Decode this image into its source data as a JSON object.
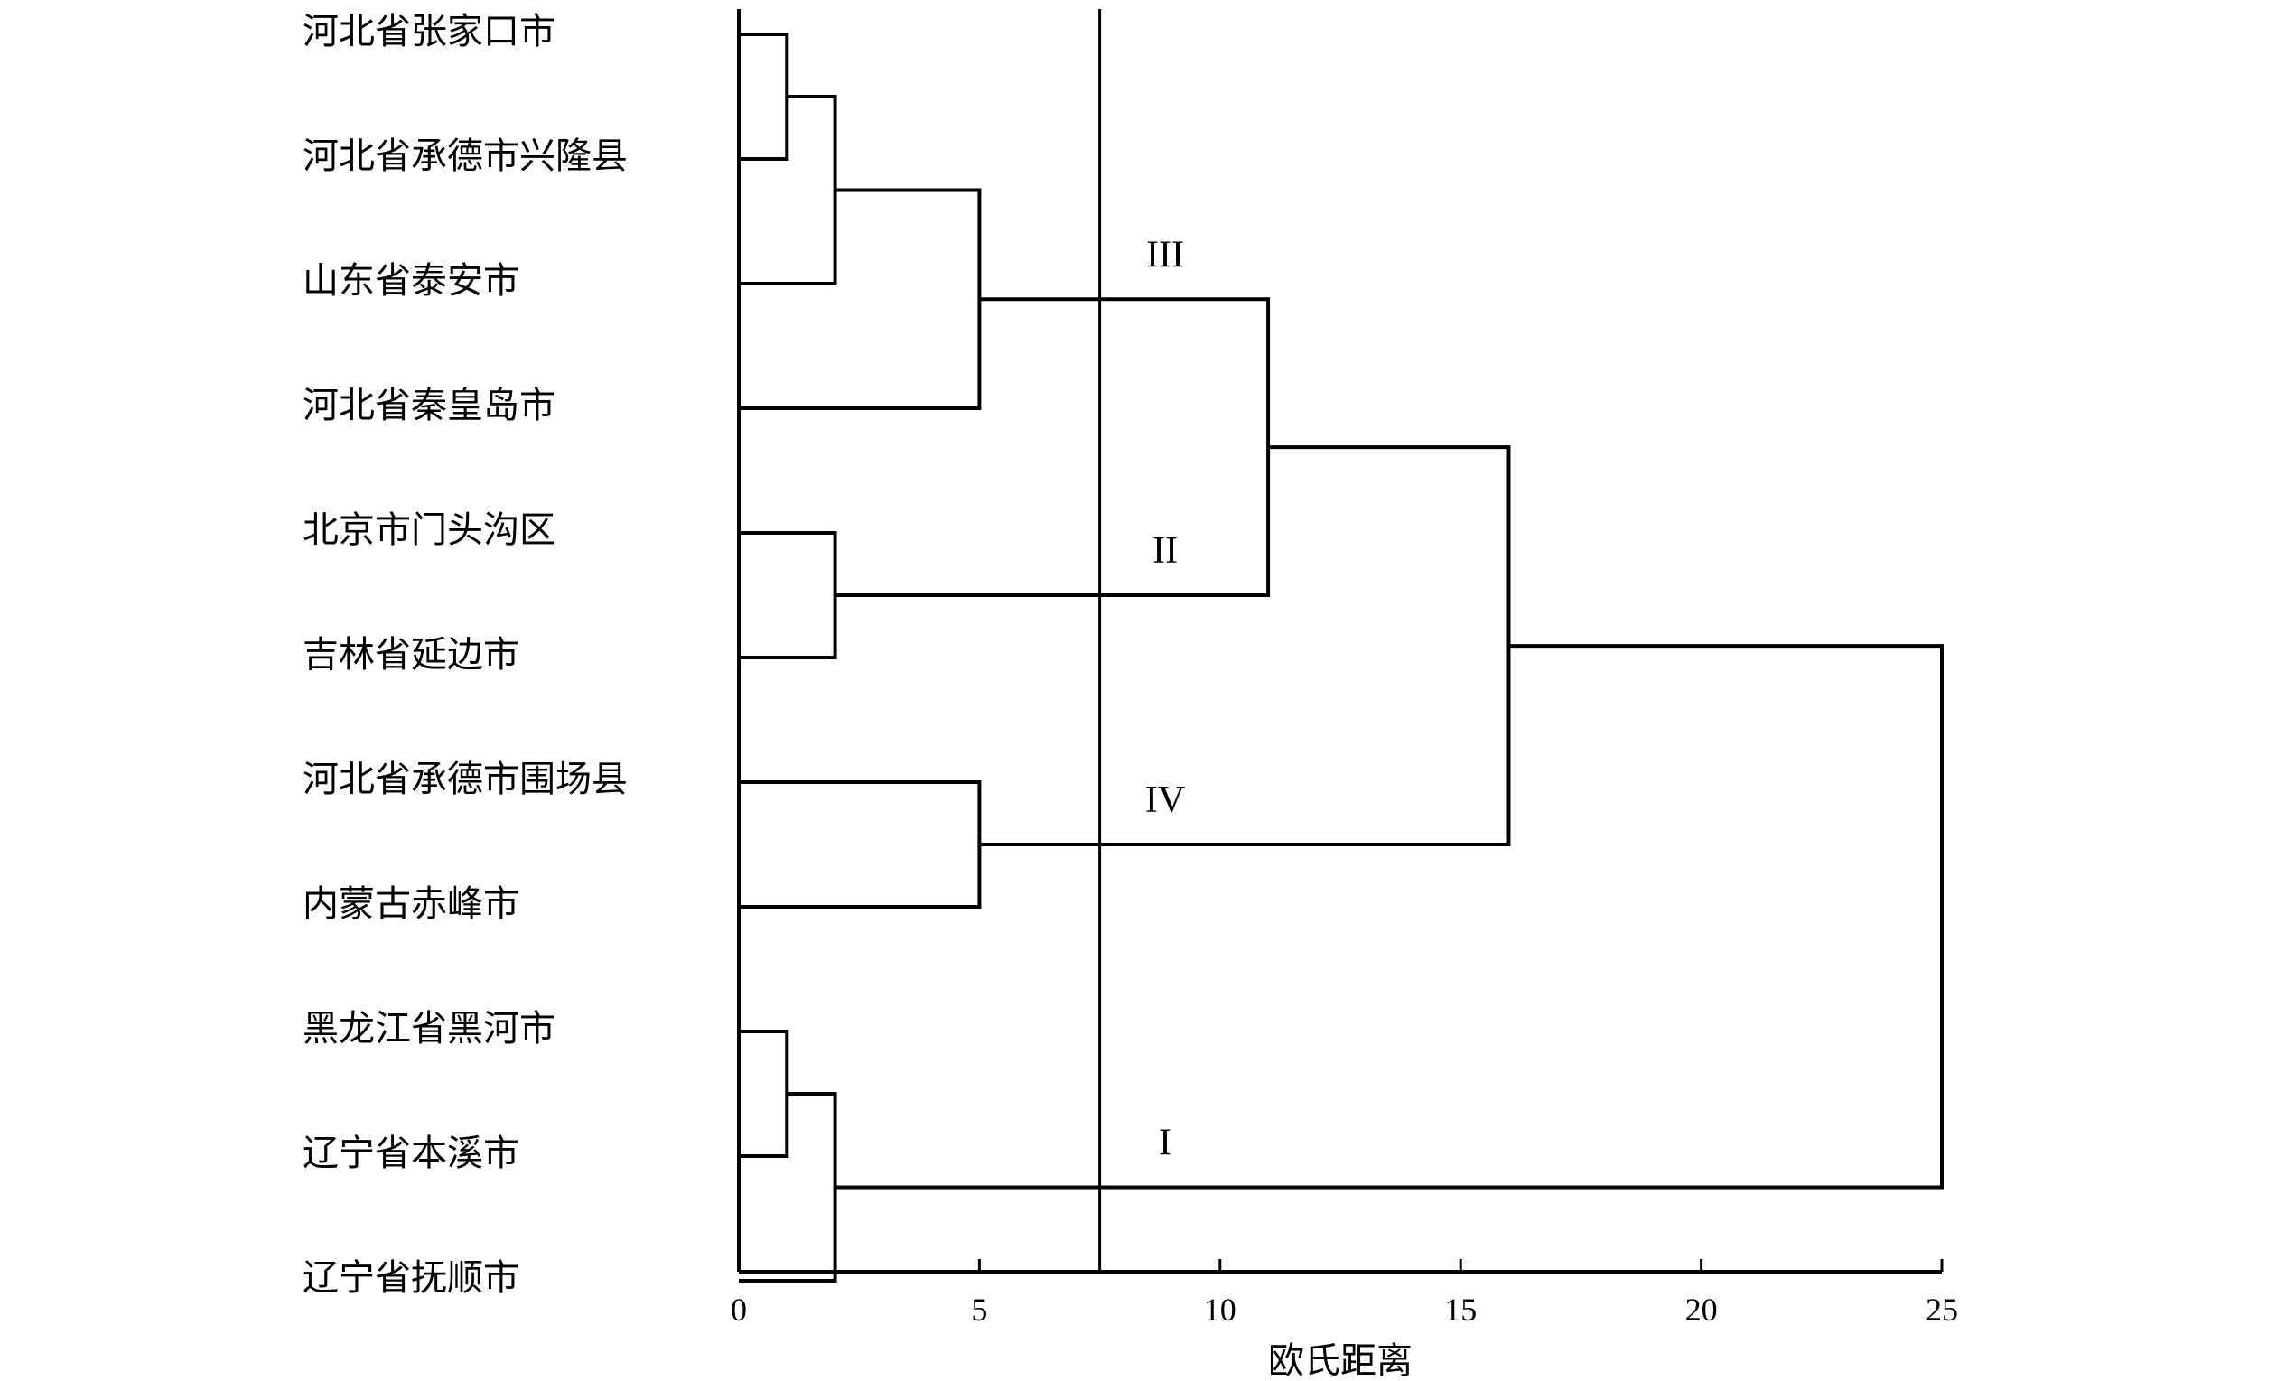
{
  "chart_data": {
    "type": "dendrogram",
    "orientation": "horizontal",
    "leaves": [
      "河北省张家口市",
      "河北省承德市兴隆县",
      "山东省泰安市",
      "河北省秦皇岛市",
      "北京市门头沟区",
      "吉林省延边市",
      "河北省承德市围场县",
      "内蒙古赤峰市",
      "黑龙江省黑河市",
      "辽宁省本溪市",
      "辽宁省抚顺市"
    ],
    "merges": [
      {
        "id": "m1",
        "children": [
          "L0",
          "L1"
        ],
        "height": 1
      },
      {
        "id": "m2",
        "children": [
          "m1",
          "L2"
        ],
        "height": 2
      },
      {
        "id": "m3",
        "children": [
          "m2",
          "L3"
        ],
        "height": 5
      },
      {
        "id": "m4",
        "children": [
          "L4",
          "L5"
        ],
        "height": 2
      },
      {
        "id": "m5",
        "children": [
          "m3",
          "m4"
        ],
        "height": 11
      },
      {
        "id": "m6",
        "children": [
          "L6",
          "L7"
        ],
        "height": 5
      },
      {
        "id": "m7",
        "children": [
          "m5",
          "m6"
        ],
        "height": 16
      },
      {
        "id": "m8",
        "children": [
          "L8",
          "L9"
        ],
        "height": 1
      },
      {
        "id": "m9",
        "children": [
          "m8",
          "L10"
        ],
        "height": 2
      },
      {
        "id": "m10",
        "children": [
          "m7",
          "m9"
        ],
        "height": 25
      }
    ],
    "cut_height": 7.5,
    "clusters": [
      {
        "label": "III",
        "x": 8.8
      },
      {
        "label": "II",
        "x": 8.8
      },
      {
        "label": "IV",
        "x": 8.8
      },
      {
        "label": "I",
        "x": 8.8
      }
    ],
    "xlabel": "欧氏距离",
    "xlim": [
      0,
      25
    ],
    "xticks": [
      0,
      5,
      10,
      15,
      20,
      25
    ],
    "grid": false,
    "legend": "none",
    "colors": {
      "line": "#000000",
      "background": "#ffffff"
    }
  }
}
